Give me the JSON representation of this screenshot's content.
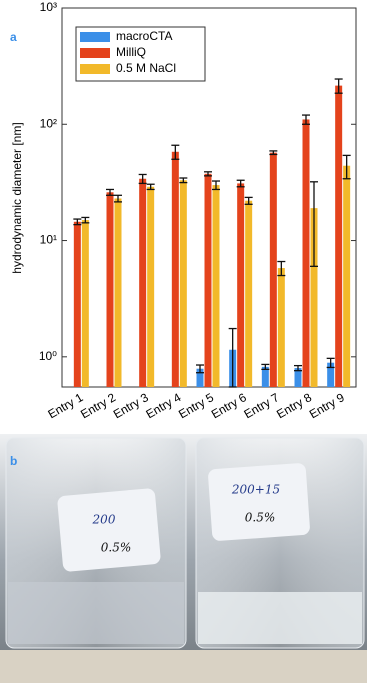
{
  "chart_data": {
    "type": "bar",
    "panel_label": "a",
    "y_label": "hydrodynamic diameter [nm]",
    "categories": [
      "Entry 1",
      "Entry 2",
      "Entry 3",
      "Entry 4",
      "Entry 5",
      "Entry 6",
      "Entry 7",
      "Entry 8",
      "Entry 9"
    ],
    "series": [
      {
        "name": "macroCTA",
        "color": "#3b8fe8",
        "values": [
          null,
          null,
          null,
          null,
          0.79,
          1.15,
          0.82,
          0.8,
          0.89
        ],
        "errors": [
          null,
          null,
          null,
          null,
          0.06,
          0.6,
          0.04,
          0.04,
          0.08
        ]
      },
      {
        "name": "MilliQ",
        "color": "#e4431c",
        "values": [
          14.5,
          26,
          34,
          58,
          37.5,
          31,
          57,
          110,
          215
        ],
        "errors": [
          0.8,
          1.5,
          3,
          8,
          1.5,
          2,
          2,
          10,
          30
        ]
      },
      {
        "name": "0.5 M NaCl",
        "color": "#f2b92a",
        "values": [
          15,
          23,
          29,
          33,
          30,
          22,
          5.8,
          19,
          44
        ],
        "errors": [
          0.8,
          1.5,
          1.5,
          1.5,
          2.5,
          1.5,
          0.8,
          13,
          10
        ]
      }
    ],
    "log_y": true,
    "ylim": [
      0.55,
      1000
    ],
    "yticks": [
      {
        "value": 1,
        "label": "10⁰"
      },
      {
        "value": 10,
        "label": "10¹"
      },
      {
        "value": 100,
        "label": "10²"
      },
      {
        "value": 1000,
        "label": "10³"
      }
    ]
  },
  "photo": {
    "panel_label": "b",
    "tags": [
      {
        "lines": [
          "200",
          "0.5%"
        ]
      },
      {
        "lines": [
          "200+15",
          "0.5%"
        ]
      }
    ]
  }
}
